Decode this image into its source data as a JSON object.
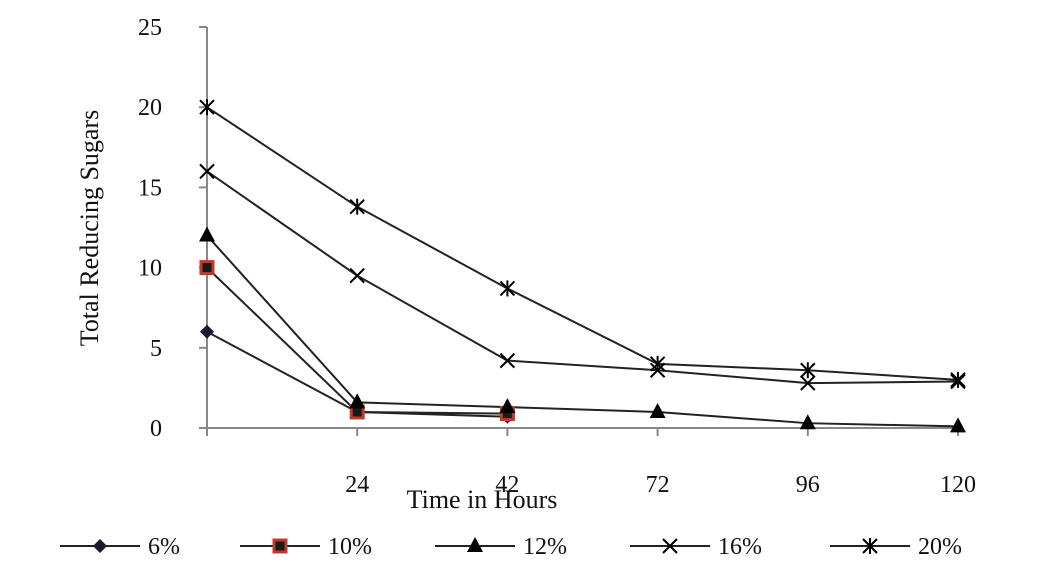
{
  "chart_data": {
    "type": "line",
    "title": "",
    "xlabel": "Time in Hours",
    "ylabel": "Total Reducing Sugars",
    "ylim": [
      0,
      25
    ],
    "yticks": [
      0,
      5,
      10,
      15,
      20,
      25
    ],
    "x_tick_labels": [
      "",
      "24",
      "42",
      "72",
      "96",
      "120"
    ],
    "grid": false,
    "legend_position": "bottom",
    "series": [
      {
        "name": "6%",
        "marker": "diamond",
        "marker_color": "#1a1a2e",
        "values": [
          6,
          1,
          0.7,
          null,
          null,
          null
        ]
      },
      {
        "name": "10%",
        "marker": "square",
        "marker_color": "#c0392b",
        "values": [
          10,
          1,
          0.9,
          null,
          null,
          null
        ]
      },
      {
        "name": "12%",
        "marker": "triangle",
        "marker_color": "#000000",
        "values": [
          12,
          1.6,
          1.3,
          1.0,
          0.3,
          0.1
        ]
      },
      {
        "name": "16%",
        "marker": "x",
        "marker_color": "#000000",
        "values": [
          16,
          9.5,
          4.2,
          3.6,
          2.8,
          2.9
        ]
      },
      {
        "name": "20%",
        "marker": "star",
        "marker_color": "#000000",
        "values": [
          20,
          13.8,
          8.7,
          4.0,
          3.6,
          3.0
        ]
      }
    ]
  }
}
